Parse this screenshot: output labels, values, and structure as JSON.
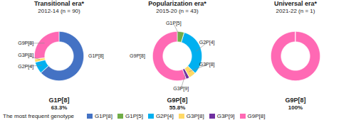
{
  "chart_data": [
    {
      "type": "donut",
      "title": "Transitional era*",
      "subtitle": "2012-14 (n = 90)",
      "categories": [
        "G1P[8]",
        "G2P[4]",
        "G3P[8]",
        "G9P[8]"
      ],
      "values": [
        63.3,
        7.8,
        2.2,
        26.7
      ],
      "colors": [
        "#4472C4",
        "#00B0F0",
        "#FFD966",
        "#FF69B4"
      ],
      "most_frequent": {
        "category": "G1P[8]",
        "value": 63.3,
        "value_label": "63.3%"
      }
    },
    {
      "type": "donut",
      "title": "Popularization era*",
      "subtitle": "2015-20 (n = 43)",
      "categories": [
        "G1P[5]",
        "G2P[4]",
        "G3P[8]",
        "G3P[9]",
        "G9P[8]"
      ],
      "values": [
        4.7,
        32.6,
        4.7,
        2.3,
        55.8
      ],
      "colors": [
        "#70AD47",
        "#00B0F0",
        "#FFD966",
        "#7030A0",
        "#FF69B4"
      ],
      "most_frequent": {
        "category": "G9P[8]",
        "value": 55.8,
        "value_label": "55.8%"
      }
    },
    {
      "type": "donut",
      "title": "Universal era*",
      "subtitle": "2021-22 (n = 1)",
      "categories": [
        "G9P[8]"
      ],
      "values": [
        100.0
      ],
      "colors": [
        "#FF69B4"
      ],
      "tick_labels": false,
      "most_frequent": {
        "category": "G9P[8]",
        "value": 100,
        "value_label": "100%"
      }
    }
  ],
  "caption": "The most frequent genotype",
  "legend": "bottom",
  "legend_entries": [
    {
      "name": "G1P[8]",
      "color": "#4472C4"
    },
    {
      "name": "G1P[5]",
      "color": "#70AD47"
    },
    {
      "name": "G2P[4]",
      "color": "#00B0F0"
    },
    {
      "name": "G3P[8]",
      "color": "#FFD966"
    },
    {
      "name": "G3P[9]",
      "color": "#7030A0"
    },
    {
      "name": "G9P[8]",
      "color": "#FF69B4"
    }
  ]
}
